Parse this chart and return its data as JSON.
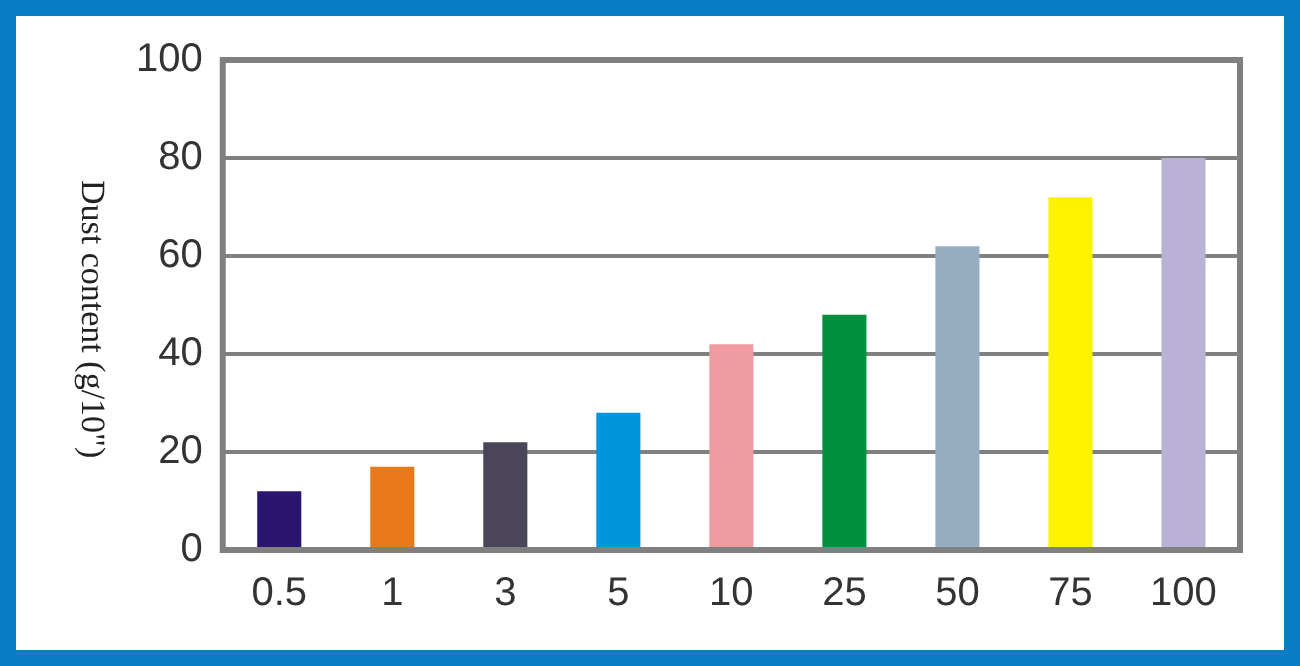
{
  "chart_data": {
    "type": "bar",
    "ylabel": "Dust content (g/10\")",
    "categories": [
      "0.5",
      "1",
      "3",
      "5",
      "10",
      "25",
      "50",
      "75",
      "100"
    ],
    "values": [
      12,
      17,
      22,
      28,
      42,
      48,
      62,
      72,
      80
    ],
    "colors": [
      "#2a1670",
      "#e8791b",
      "#4a4558",
      "#0096dc",
      "#ef9ba0",
      "#00913f",
      "#97adc1",
      "#fff200",
      "#b9b1d6"
    ],
    "ylim": [
      0,
      100
    ],
    "yticks": [
      0,
      20,
      40,
      60,
      80,
      100
    ],
    "grid": "y",
    "legend": false
  }
}
